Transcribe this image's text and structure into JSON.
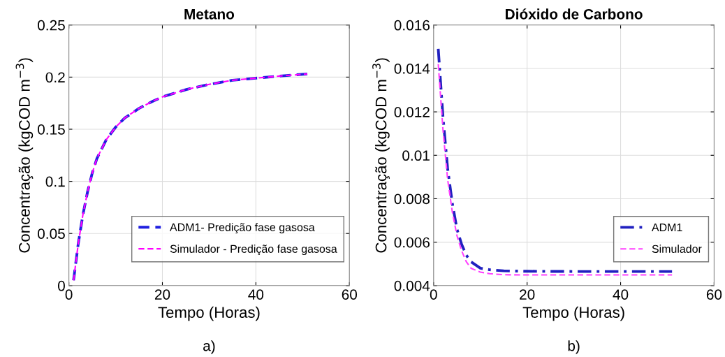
{
  "chart_data": [
    {
      "type": "line",
      "title": "Metano",
      "xlabel": "Tempo (Horas)",
      "ylabel": "Concentração (kgCOD m$^{−3}$)",
      "annotations": [
        "a)"
      ],
      "xlim": [
        0,
        60
      ],
      "xticks": [
        0,
        20,
        40,
        60
      ],
      "ylim": [
        0,
        0.25
      ],
      "yticks": [
        0,
        0.05,
        0.1,
        0.15,
        0.2,
        0.25
      ],
      "grid": true,
      "legend": "bottom right",
      "x": [
        1,
        2,
        3,
        4,
        5,
        6,
        8,
        10,
        12,
        15,
        18,
        20,
        25,
        30,
        35,
        40,
        45,
        51
      ],
      "series": [
        {
          "name": "ADM1- Predição fase gasosa",
          "color": "#2020e0",
          "line_style": "dashed",
          "values": [
            0.005,
            0.04,
            0.068,
            0.09,
            0.108,
            0.122,
            0.14,
            0.152,
            0.161,
            0.17,
            0.177,
            0.181,
            0.188,
            0.193,
            0.197,
            0.199,
            0.201,
            0.203
          ]
        },
        {
          "name": "Simulador - Predição fase gasosa",
          "color": "#ff00ff",
          "line_style": "dashed",
          "values": [
            0.005,
            0.04,
            0.068,
            0.09,
            0.108,
            0.122,
            0.14,
            0.152,
            0.161,
            0.17,
            0.177,
            0.181,
            0.188,
            0.193,
            0.197,
            0.199,
            0.201,
            0.203
          ]
        }
      ]
    },
    {
      "type": "line",
      "title": "Dióxido de Carbono",
      "xlabel": "Tempo (Horas)",
      "ylabel": "Concentração (kgCOD m$^{−3}$)",
      "annotations": [
        "b)"
      ],
      "xlim": [
        0,
        60
      ],
      "xticks": [
        0,
        20,
        40,
        60
      ],
      "ylim": [
        0.004,
        0.016
      ],
      "yticks": [
        0.004,
        0.006,
        0.008,
        0.01,
        0.012,
        0.014,
        0.016
      ],
      "grid": true,
      "legend": "bottom right",
      "x": [
        1,
        2,
        3,
        4,
        5,
        6,
        7,
        8,
        10,
        12,
        15,
        20,
        30,
        51
      ],
      "series": [
        {
          "name": "ADM1",
          "color": "#2020c0",
          "line_style": "dashdot",
          "values": [
            0.0149,
            0.0118,
            0.0094,
            0.0078,
            0.0066,
            0.0059,
            0.0054,
            0.0051,
            0.0048,
            0.00473,
            0.00468,
            0.00466,
            0.00465,
            0.00465
          ]
        },
        {
          "name": "Simulador",
          "color": "#ff40ff",
          "line_style": "dashed",
          "values": [
            0.0142,
            0.0112,
            0.0089,
            0.0074,
            0.0063,
            0.0056,
            0.0051,
            0.0048,
            0.00462,
            0.00455,
            0.0045,
            0.00449,
            0.00449,
            0.00449
          ]
        }
      ]
    }
  ]
}
